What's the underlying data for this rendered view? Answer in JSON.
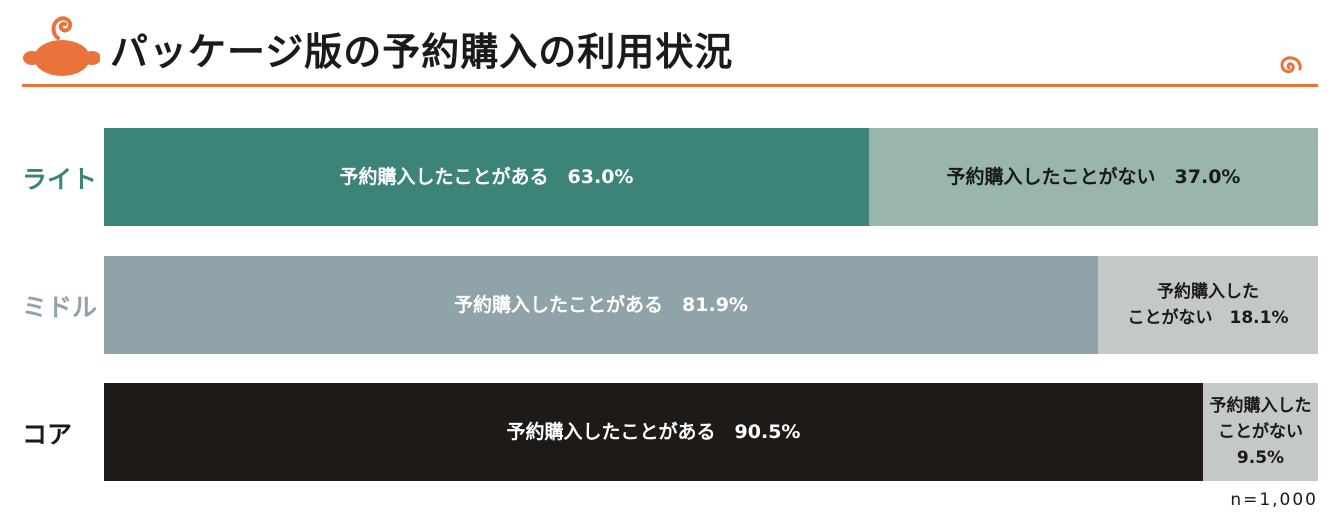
{
  "title": "パッケージ版の予約購入の利用状況",
  "chart_data": {
    "type": "bar",
    "orientation": "horizontal",
    "stacked": true,
    "unit": "%",
    "xlim": [
      0,
      100
    ],
    "categories": [
      "ライト",
      "ミドル",
      "コア"
    ],
    "series": [
      {
        "name": "予約購入したことがある",
        "values": [
          63.0,
          81.9,
          90.5
        ]
      },
      {
        "name": "予約購入したことがない",
        "values": [
          37.0,
          18.1,
          9.5
        ]
      }
    ],
    "bars": [
      {
        "label": "ライト",
        "label_color": "#3d8478",
        "segments": [
          {
            "lines": [
              "予約購入したことがある　63.0%"
            ],
            "value": 63.0,
            "fill": "#3d8478",
            "text_color": "#ffffff"
          },
          {
            "lines": [
              "予約購入したことがない　37.0%"
            ],
            "value": 37.0,
            "fill": "#9ab5ab",
            "text_color": "#1a1a1a"
          }
        ]
      },
      {
        "label": "ミドル",
        "label_color": "#8fa3a9",
        "segments": [
          {
            "lines": [
              "予約購入したことがある　81.9%"
            ],
            "value": 81.9,
            "fill": "#8fa3a9",
            "text_color": "#ffffff"
          },
          {
            "lines": [
              "予約購入した",
              "ことがない　18.1%"
            ],
            "value": 18.1,
            "fill": "#c4c8c9",
            "text_color": "#1a1a1a"
          }
        ]
      },
      {
        "label": "コア",
        "label_color": "#1a1a1a",
        "segments": [
          {
            "lines": [
              "予約購入したことがある　90.5%"
            ],
            "value": 90.5,
            "fill": "#1d1a18",
            "text_color": "#ffffff"
          },
          {
            "lines": [
              "予約購入した",
              "ことがない",
              "9.5%"
            ],
            "value": 9.5,
            "fill": "#c4c8c9",
            "text_color": "#1a1a1a"
          }
        ]
      }
    ]
  },
  "note": "n=1,000",
  "colors": {
    "accent": "#e8743b"
  },
  "icons": {
    "logo": "orange-mascot-icon",
    "decoration": "swirl-icon"
  }
}
